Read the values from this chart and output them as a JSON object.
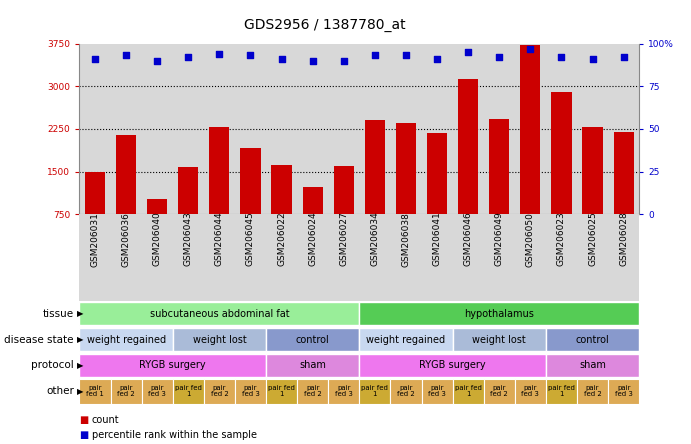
{
  "title": "GDS2956 / 1387780_at",
  "samples": [
    "GSM206031",
    "GSM206036",
    "GSM206040",
    "GSM206043",
    "GSM206044",
    "GSM206045",
    "GSM206022",
    "GSM206024",
    "GSM206027",
    "GSM206034",
    "GSM206038",
    "GSM206041",
    "GSM206046",
    "GSM206049",
    "GSM206050",
    "GSM206023",
    "GSM206025",
    "GSM206028"
  ],
  "counts": [
    1500,
    2150,
    1020,
    1580,
    2280,
    1920,
    1610,
    1240,
    1600,
    2400,
    2350,
    2180,
    3120,
    2420,
    3720,
    2900,
    2280,
    2200
  ],
  "percentile_ranks": [
    91,
    93,
    90,
    92,
    94,
    93,
    91,
    90,
    90,
    93,
    93,
    91,
    95,
    92,
    97,
    92,
    91,
    92
  ],
  "ylim_left": [
    750,
    3750
  ],
  "yticks_left": [
    750,
    1500,
    2250,
    3000,
    3750
  ],
  "ylim_right": [
    0,
    100
  ],
  "yticks_right": [
    0,
    25,
    50,
    75,
    100
  ],
  "bar_color": "#cc0000",
  "dot_color": "#0000cc",
  "chart_bg_color": "#d8d8d8",
  "fig_bg_color": "#ffffff",
  "tissue_spans": [
    [
      0,
      8,
      "subcutaneous abdominal fat",
      "#99ee99"
    ],
    [
      9,
      17,
      "hypothalamus",
      "#55cc55"
    ]
  ],
  "disease_state_spans": [
    [
      0,
      2,
      "weight regained",
      "#c8d8f0"
    ],
    [
      3,
      5,
      "weight lost",
      "#aabbd8"
    ],
    [
      6,
      8,
      "control",
      "#8899cc"
    ],
    [
      9,
      11,
      "weight regained",
      "#c8d8f0"
    ],
    [
      12,
      14,
      "weight lost",
      "#aabbd8"
    ],
    [
      15,
      17,
      "control",
      "#8899cc"
    ]
  ],
  "protocol_spans": [
    [
      0,
      5,
      "RYGB surgery",
      "#ee77ee"
    ],
    [
      6,
      8,
      "sham",
      "#dd88dd"
    ],
    [
      9,
      14,
      "RYGB surgery",
      "#ee77ee"
    ],
    [
      15,
      17,
      "sham",
      "#dd88dd"
    ]
  ],
  "other_colors": [
    "#ddaa55",
    "#ddaa55",
    "#ddaa55",
    "#ccaa33",
    "#ddaa55",
    "#ddaa55",
    "#ccaa33",
    "#ddaa55",
    "#ddaa55",
    "#ccaa33",
    "#ddaa55",
    "#ddaa55",
    "#ccaa33",
    "#ddaa55",
    "#ddaa55",
    "#ccaa33",
    "#ddaa55",
    "#ddaa55"
  ],
  "other_labels": [
    "pair\nfed 1",
    "pair\nfed 2",
    "pair\nfed 3",
    "pair fed\n1",
    "pair\nfed 2",
    "pair\nfed 3",
    "pair fed\n1",
    "pair\nfed 2",
    "pair\nfed 3",
    "pair fed\n1",
    "pair\nfed 2",
    "pair\nfed 3",
    "pair fed\n1",
    "pair\nfed 2",
    "pair\nfed 3",
    "pair fed\n1",
    "pair\nfed 2",
    "pair\nfed 3"
  ],
  "title_fontsize": 10,
  "bar_label_fontsize": 6.5,
  "row_label_fontsize": 7.5,
  "annot_fontsize": 7,
  "tick_fontsize": 6.5,
  "other_fontsize": 5.0,
  "legend_fontsize": 7
}
